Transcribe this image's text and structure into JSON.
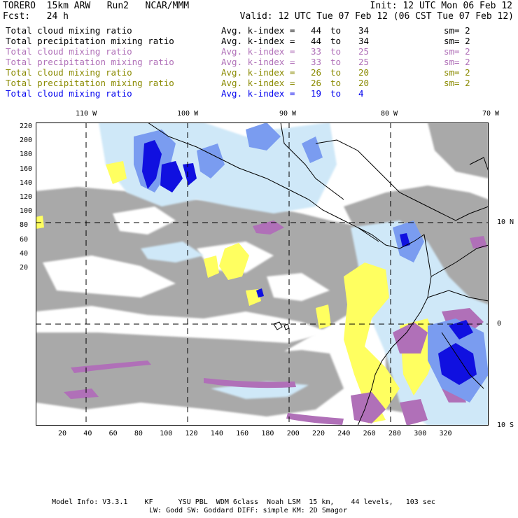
{
  "header": {
    "model": "TORERO  15km ARW   Run2   NCAR/MMM",
    "init": "Init: 12 UTC Mon 06 Feb 12",
    "fcst": "Fcst:   24 h",
    "valid": "Valid: 12 UTC Tue 07 Feb 12 (06 CST Tue 07 Feb 12)"
  },
  "legend": [
    {
      "name": "Total cloud mixing ratio",
      "avg": "Avg. k-index = ",
      "from": "44",
      "to_word": "to",
      "to": "34",
      "sm": "sm= 2",
      "color": "#000000"
    },
    {
      "name": "Total precipitation mixing ratio",
      "avg": "Avg. k-index = ",
      "from": "44",
      "to_word": "to",
      "to": "34",
      "sm": "sm= 2",
      "color": "#000000"
    },
    {
      "name": "Total cloud mixing ratio",
      "avg": "Avg. k-index = ",
      "from": "33",
      "to_word": "to",
      "to": "25",
      "sm": "sm= 2",
      "color": "#b070b8"
    },
    {
      "name": "Total precipitation mixing ratio",
      "avg": "Avg. k-index = ",
      "from": "33",
      "to_word": "to",
      "to": "25",
      "sm": "sm= 2",
      "color": "#b070b8"
    },
    {
      "name": "Total cloud mixing ratio",
      "avg": "Avg. k-index = ",
      "from": "26",
      "to_word": "to",
      "to": "20",
      "sm": "sm= 2",
      "color": "#8a8a00"
    },
    {
      "name": "Total precipitation mixing ratio",
      "avg": "Avg. k-index = ",
      "from": "26",
      "to_word": "to",
      "to": "20",
      "sm": "sm= 2",
      "color": "#8a8a00"
    },
    {
      "name": "Total cloud mixing ratio",
      "avg": "Avg. k-index = ",
      "from": "19",
      "to_word": "to",
      "to": "4",
      "sm": "",
      "color": "#0000ee"
    }
  ],
  "axes": {
    "lon_labels": [
      "110 W",
      "100 W",
      "90 W",
      "80 W",
      "70 W"
    ],
    "lat_labels": [
      "10 N",
      "0",
      "10 S"
    ],
    "y_ticks": [
      "220",
      "200",
      "180",
      "160",
      "140",
      "120",
      "100",
      "80",
      "60",
      "40",
      "20"
    ],
    "x_ticks": [
      "20",
      "40",
      "60",
      "80",
      "100",
      "120",
      "140",
      "160",
      "180",
      "200",
      "220",
      "240",
      "260",
      "280",
      "300",
      "320"
    ]
  },
  "colors": {
    "gray_cloud": "#a9a9a9",
    "yellow_cloud": "#ffff60",
    "purple_cloud": "#b070b8",
    "light_blue": "#cfe8f8",
    "mid_blue": "#7a9cf0",
    "dark_blue": "#1010e0"
  },
  "footer": {
    "line1": "Model Info: V3.3.1    KF      YSU PBL  WDM 6class  Noah LSM  15 km,    44 levels,   103 sec",
    "line2": "LW: Godd SW: Goddard DIFF: simple KM: 2D Smagor"
  }
}
